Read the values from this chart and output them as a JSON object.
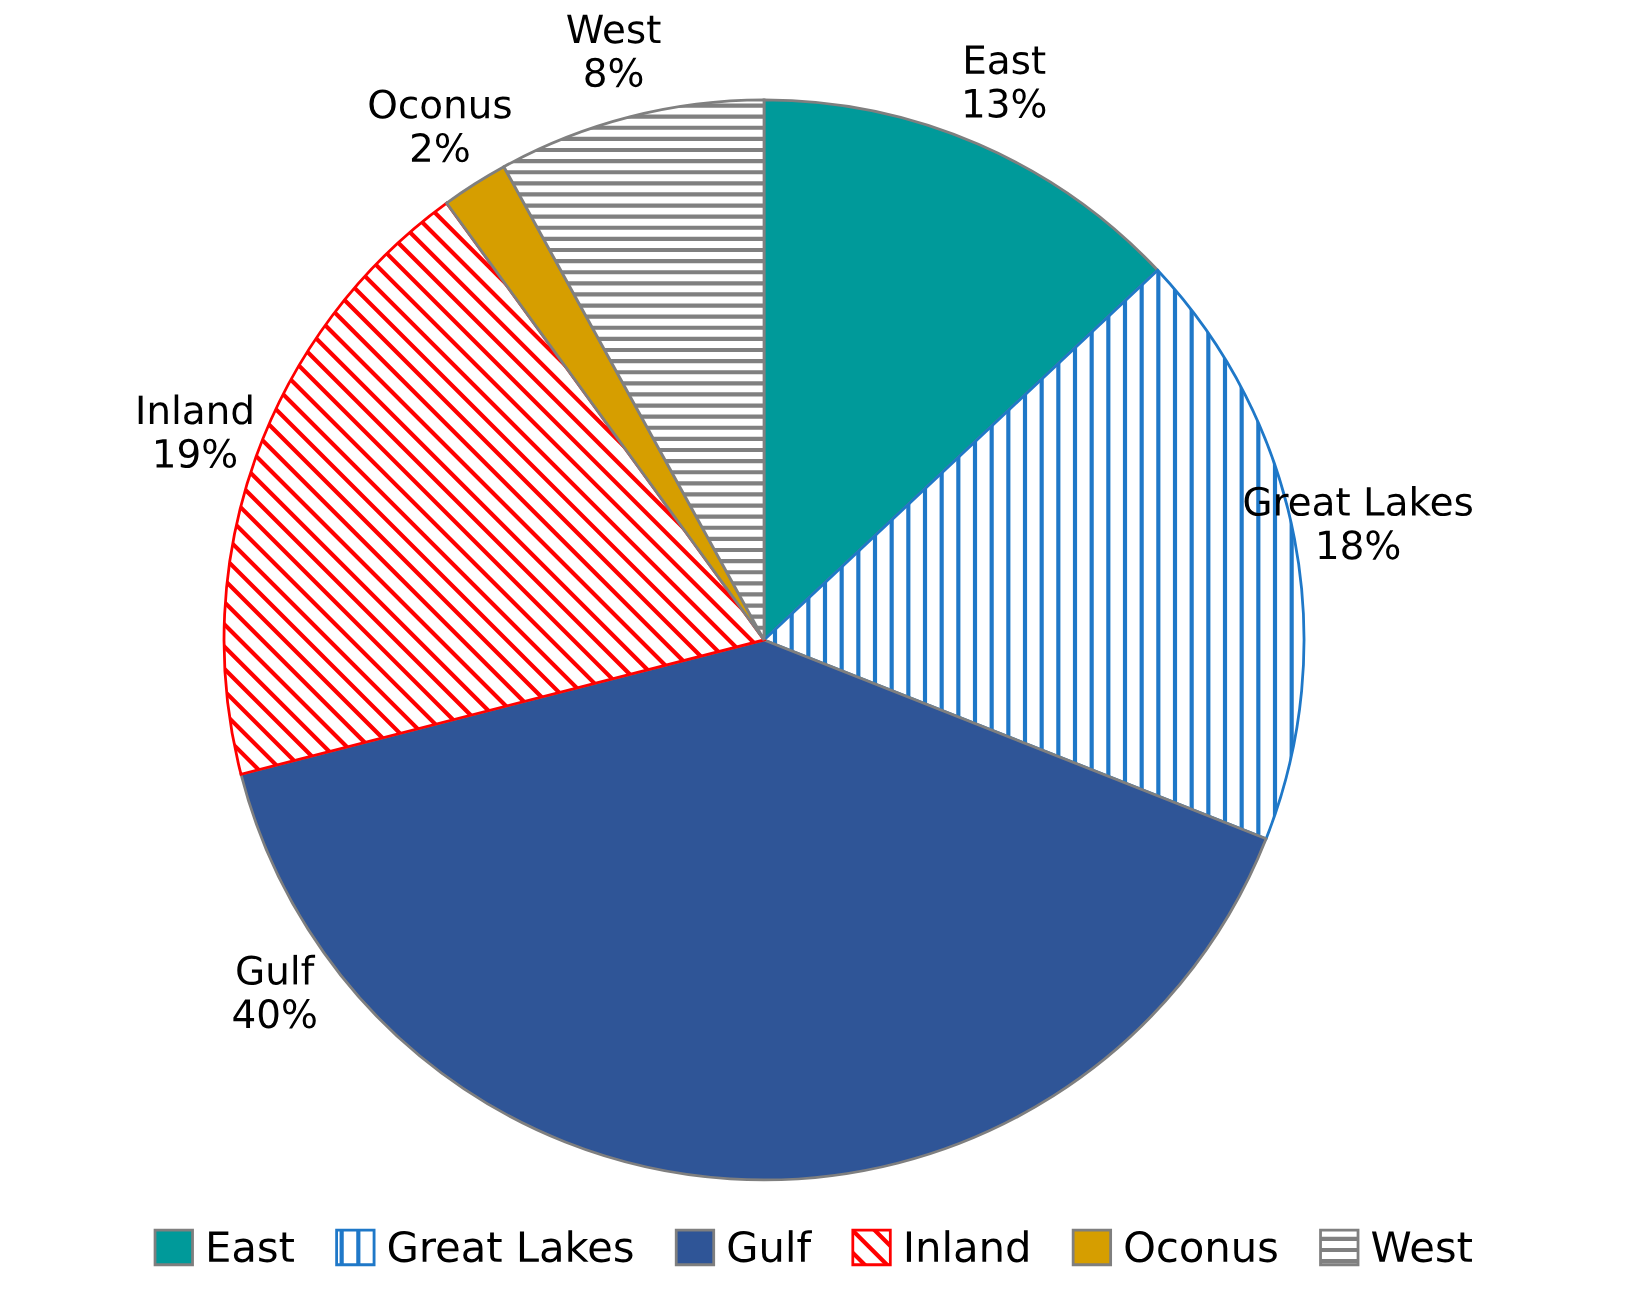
{
  "chart_data": {
    "type": "pie",
    "categories": [
      "East",
      "Great Lakes",
      "Gulf",
      "Inland",
      "Oconus",
      "West"
    ],
    "values": [
      13,
      18,
      40,
      19,
      2,
      8
    ],
    "value_labels": [
      "13%",
      "18%",
      "40%",
      "19%",
      "2%",
      "8%"
    ],
    "colors": [
      "#009a9a",
      "#1f78c8",
      "#2f5597",
      "#ff0000",
      "#d69e00",
      "#808080"
    ],
    "legend": "bottom"
  }
}
